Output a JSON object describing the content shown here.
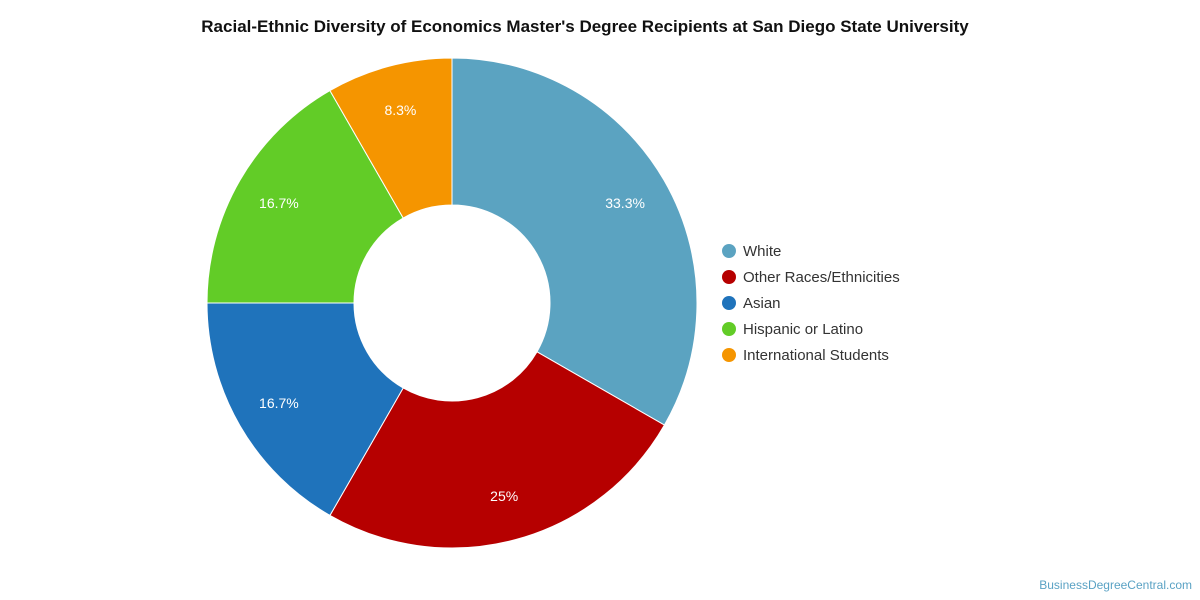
{
  "chart_data": {
    "type": "pie",
    "title": "Racial-Ethnic Diversity of Economics Master's Degree Recipients at San Diego State University",
    "legend_position": "right",
    "donut": true,
    "slices": [
      {
        "label": "White",
        "value": 33.3,
        "display": "33.3%",
        "color": "#5ba3c1"
      },
      {
        "label": "Other Races/Ethnicities",
        "value": 25,
        "display": "25%",
        "color": "#b60000"
      },
      {
        "label": "Asian",
        "value": 16.7,
        "display": "16.7%",
        "color": "#1f73bb"
      },
      {
        "label": "Hispanic or Latino",
        "value": 16.7,
        "display": "16.7%",
        "color": "#62cc27"
      },
      {
        "label": "International Students",
        "value": 8.3,
        "display": "8.3%",
        "color": "#f59500"
      }
    ]
  },
  "footer": {
    "credit": "BusinessDegreeCentral.com"
  }
}
